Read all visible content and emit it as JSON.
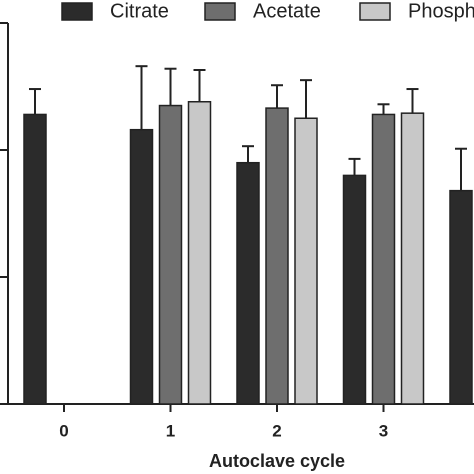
{
  "chart_data": {
    "type": "bar",
    "x_label": "Autoclave cycle",
    "categories": [
      "0",
      "1",
      "2",
      "3",
      null
    ],
    "series": [
      {
        "name": "Citrate",
        "color": "#2b2b2b",
        "values": [
          2.28,
          2.16,
          1.9,
          1.8,
          1.68
        ],
        "errors": [
          0.2,
          0.5,
          0.13,
          0.13,
          0.33
        ]
      },
      {
        "name": "Acetate",
        "color": "#6e6e6e",
        "values": [
          null,
          2.35,
          2.33,
          2.28,
          null
        ],
        "errors": [
          null,
          0.29,
          0.18,
          0.08,
          null
        ]
      },
      {
        "name": "Phosphate",
        "color": "#c8c8c8",
        "values": [
          null,
          2.38,
          2.25,
          2.29,
          null
        ],
        "errors": [
          null,
          0.25,
          0.3,
          0.19,
          null
        ]
      }
    ],
    "ylim": [
      0,
      3
    ],
    "yticks": [
      0,
      1,
      2,
      3
    ]
  }
}
